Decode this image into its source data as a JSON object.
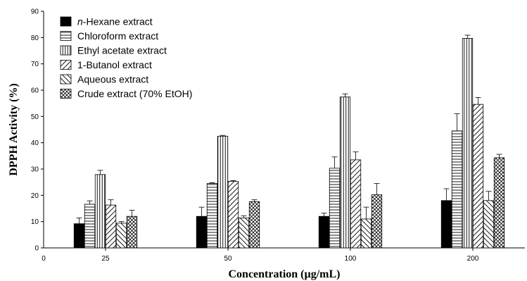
{
  "chart_data": {
    "type": "bar",
    "xlabel": "Concentration (µg/mL)",
    "ylabel": "DPPH Activity (%)",
    "ylim": [
      0,
      90
    ],
    "yticks": [
      0,
      10,
      20,
      30,
      40,
      50,
      60,
      70,
      80,
      90
    ],
    "x_origin_label": "0",
    "categories": [
      "25",
      "50",
      "100",
      "200"
    ],
    "legend_position": "top-left",
    "series": [
      {
        "prefix": "n",
        "name": "-Hexane extract",
        "pattern": "solid",
        "values": [
          9.2,
          12.0,
          12.0,
          18.0
        ],
        "errors": [
          2.2,
          3.5,
          1.2,
          4.5
        ]
      },
      {
        "prefix": "",
        "name": "Chloroform extract",
        "pattern": "hlines",
        "values": [
          16.6,
          24.5,
          30.3,
          44.5
        ],
        "errors": [
          1.3,
          0.3,
          4.3,
          6.5
        ]
      },
      {
        "prefix": "",
        "name": "Ethyl acetate extract",
        "pattern": "vlines",
        "values": [
          27.9,
          42.5,
          57.4,
          79.7
        ],
        "errors": [
          1.6,
          0.3,
          1.2,
          1.2
        ]
      },
      {
        "prefix": "",
        "name": "1-Butanol extract",
        "pattern": "fdiag",
        "values": [
          16.3,
          25.3,
          33.5,
          54.6
        ],
        "errors": [
          2.0,
          0.3,
          3.0,
          2.6
        ]
      },
      {
        "prefix": "",
        "name": "Aqueous extract",
        "pattern": "bdiag",
        "values": [
          9.4,
          11.4,
          11.0,
          18.0
        ],
        "errors": [
          0.6,
          0.8,
          4.5,
          3.5
        ]
      },
      {
        "prefix": "",
        "name": "Crude extract (70% EtOH)",
        "pattern": "cross",
        "values": [
          12.0,
          17.6,
          20.2,
          34.3
        ],
        "errors": [
          2.3,
          0.7,
          4.3,
          1.3
        ]
      }
    ]
  }
}
